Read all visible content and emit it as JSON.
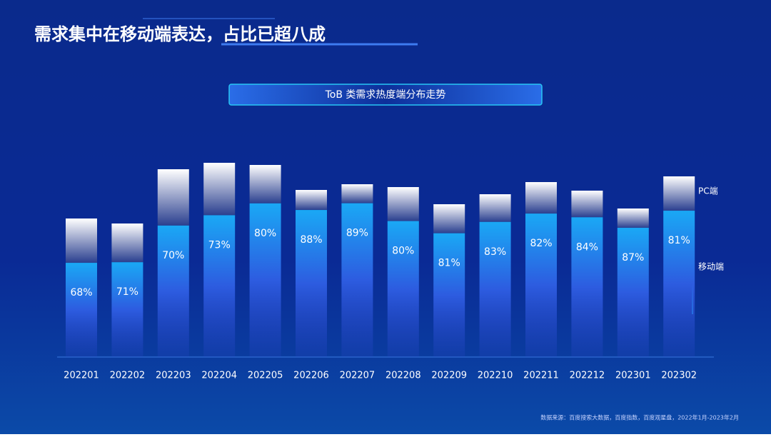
{
  "chart_data": {
    "type": "bar",
    "title": "需求集中在移动端表达，占比已超八成",
    "subtitle": "ToB 类需求热度端分布走势",
    "source": "数据来源：百度搜索大数据，百度指数，百度观星盘，2022年1月-2023年2月",
    "categories": [
      "202201",
      "202202",
      "202203",
      "202204",
      "202205",
      "202206",
      "202207",
      "202208",
      "202209",
      "202210",
      "202211",
      "202212",
      "202301",
      "202302"
    ],
    "totals": [
      194,
      187,
      263,
      272,
      269,
      234,
      242,
      238,
      214,
      228,
      245,
      233,
      208,
      253
    ],
    "series": [
      {
        "name": "移动端",
        "color": "#1aa3f0",
        "values": [
          68,
          71,
          70,
          73,
          80,
          88,
          89,
          80,
          81,
          83,
          82,
          84,
          87,
          81
        ],
        "value_labels": [
          "68%",
          "71%",
          "70%",
          "73%",
          "80%",
          "88%",
          "89%",
          "80%",
          "81%",
          "83%",
          "82%",
          "84%",
          "87%",
          "81%"
        ]
      },
      {
        "name": "PC端",
        "color": "#ffffff"
      }
    ],
    "ylim": [
      0,
      300
    ]
  }
}
